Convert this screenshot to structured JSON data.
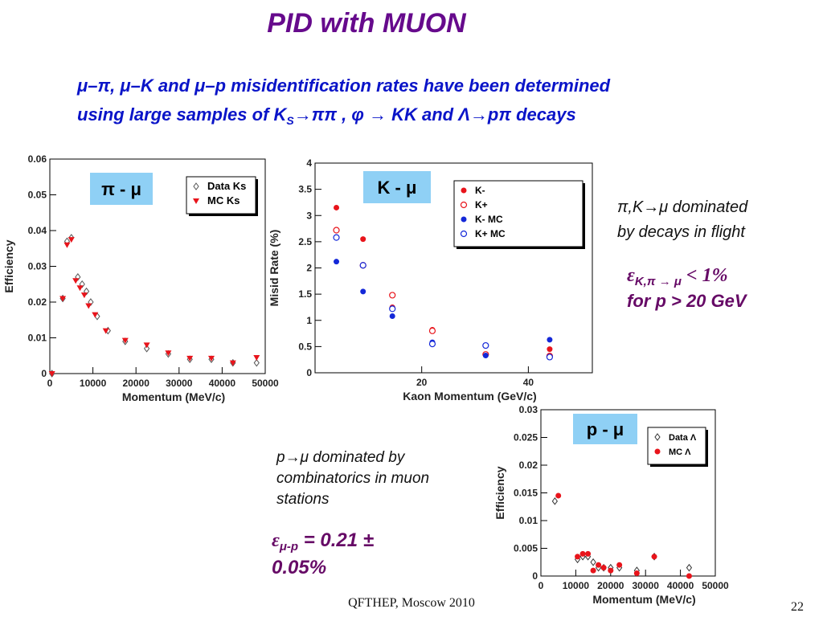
{
  "slide": {
    "title": "PID with MUON",
    "subtitle_line1": "μ–π, μ–K and μ–p misidentification rates have been determined",
    "subtitle_line2": [
      "using large samples of K",
      "S",
      "→ππ , φ → KK and Λ→pπ decays"
    ],
    "note_kaon": [
      "π,K→μ dominated",
      "by decays in flight"
    ],
    "eps_kaon": [
      "ε",
      "K,π → μ",
      " < 1%"
    ],
    "eps_kaon_cond": "for p > 20 GeV",
    "note_proton": [
      "p→μ dominated by",
      "combinatorics in muon",
      "stations"
    ],
    "eps_proton": [
      "ε",
      "μ-p",
      "  = 0.21 ±",
      "0.05%"
    ],
    "footer": "QFTHEP, Moscow 2010",
    "page": "22"
  },
  "chart_data": [
    {
      "type": "scatter",
      "panel_label": "π - μ",
      "y_label": "Efficiency",
      "x_label": "Momentum (MeV/c)",
      "xlim": [
        0,
        50000
      ],
      "xticks": [
        0,
        10000,
        20000,
        30000,
        40000,
        50000
      ],
      "ylim": [
        0,
        0.06
      ],
      "yticks": [
        0,
        0.01,
        0.02,
        0.03,
        0.04,
        0.05,
        0.06
      ],
      "legend": "upper right",
      "series": [
        {
          "name": "Data Ks",
          "color": "#555555",
          "marker": "diamond-open",
          "x": [
            500,
            3000,
            4000,
            5000,
            6500,
            7500,
            8500,
            9500,
            11000,
            13500,
            17500,
            22500,
            27500,
            32500,
            37500,
            42500,
            48000
          ],
          "values": [
            0.0,
            0.021,
            0.037,
            0.038,
            0.027,
            0.025,
            0.023,
            0.02,
            0.016,
            0.012,
            0.009,
            0.007,
            0.0055,
            0.004,
            0.004,
            0.003,
            0.003
          ]
        },
        {
          "name": "MC Ks",
          "color": "#e8141b",
          "marker": "triangle",
          "x": [
            500,
            3000,
            4000,
            5000,
            6000,
            7000,
            8000,
            9000,
            10500,
            13000,
            17500,
            22500,
            27500,
            32500,
            37500,
            42500,
            48000
          ],
          "values": [
            0.0,
            0.021,
            0.036,
            0.0375,
            0.026,
            0.024,
            0.022,
            0.019,
            0.0165,
            0.012,
            0.0093,
            0.008,
            0.0058,
            0.0043,
            0.0043,
            0.003,
            0.0045
          ]
        }
      ]
    },
    {
      "type": "scatter",
      "panel_label": "K - μ",
      "y_label": "Misid Rate (%)",
      "x_label": "Kaon Momentum (GeV/c)",
      "xlim": [
        0,
        52
      ],
      "xticks": [
        20,
        40
      ],
      "ylim": [
        0,
        4
      ],
      "yticks": [
        0,
        0.5,
        1,
        1.5,
        2,
        2.5,
        3,
        3.5,
        4
      ],
      "legend": "upper right",
      "series": [
        {
          "name": "K-",
          "color": "#e8141b",
          "marker": "circle",
          "x": [
            4,
            9,
            14.5,
            22,
            32,
            44
          ],
          "values": [
            3.15,
            2.55,
            1.25,
            0.82,
            0.35,
            0.45
          ]
        },
        {
          "name": "K+",
          "color": "#e8141b",
          "marker": "circle-open",
          "x": [
            4,
            9,
            14.5,
            22,
            32,
            44
          ],
          "values": [
            2.72,
            2.05,
            1.48,
            0.8,
            0.35,
            0.32
          ]
        },
        {
          "name": "K- MC",
          "color": "#1428d8",
          "marker": "circle",
          "x": [
            4,
            9,
            14.5,
            22,
            32,
            44
          ],
          "values": [
            2.12,
            1.55,
            1.08,
            0.58,
            0.33,
            0.63
          ]
        },
        {
          "name": "K+ MC",
          "color": "#1428d8",
          "marker": "circle-open",
          "x": [
            4,
            9,
            14.5,
            22,
            32,
            44
          ],
          "values": [
            2.58,
            2.05,
            1.22,
            0.55,
            0.52,
            0.3
          ]
        }
      ]
    },
    {
      "type": "scatter",
      "panel_label": "p - μ",
      "y_label": "Efficiency",
      "x_label": "Momentum (MeV/c)",
      "xlim": [
        0,
        50000
      ],
      "xticks": [
        0,
        10000,
        20000,
        30000,
        40000,
        50000
      ],
      "ylim": [
        0,
        0.03
      ],
      "yticks": [
        0,
        0.005,
        0.01,
        0.015,
        0.02,
        0.025,
        0.03
      ],
      "legend": "upper right",
      "series": [
        {
          "name": "Data Λ",
          "color": "#333333",
          "marker": "diamond-open",
          "x": [
            4000,
            10500,
            12000,
            13500,
            15000,
            16500,
            18000,
            20000,
            22500,
            27500,
            32500,
            42500
          ],
          "values": [
            0.0135,
            0.003,
            0.0035,
            0.0035,
            0.0025,
            0.0015,
            0.0015,
            0.0015,
            0.0015,
            0.001,
            0.0035,
            0.0015
          ]
        },
        {
          "name": "MC Λ",
          "color": "#e8141b",
          "marker": "circle",
          "x": [
            5000,
            10500,
            12000,
            13500,
            15000,
            16500,
            18000,
            20000,
            22500,
            27500,
            32500,
            42500
          ],
          "values": [
            0.0145,
            0.0035,
            0.004,
            0.004,
            0.001,
            0.002,
            0.0015,
            0.001,
            0.002,
            0.0005,
            0.0035,
            0.0
          ]
        }
      ]
    }
  ]
}
